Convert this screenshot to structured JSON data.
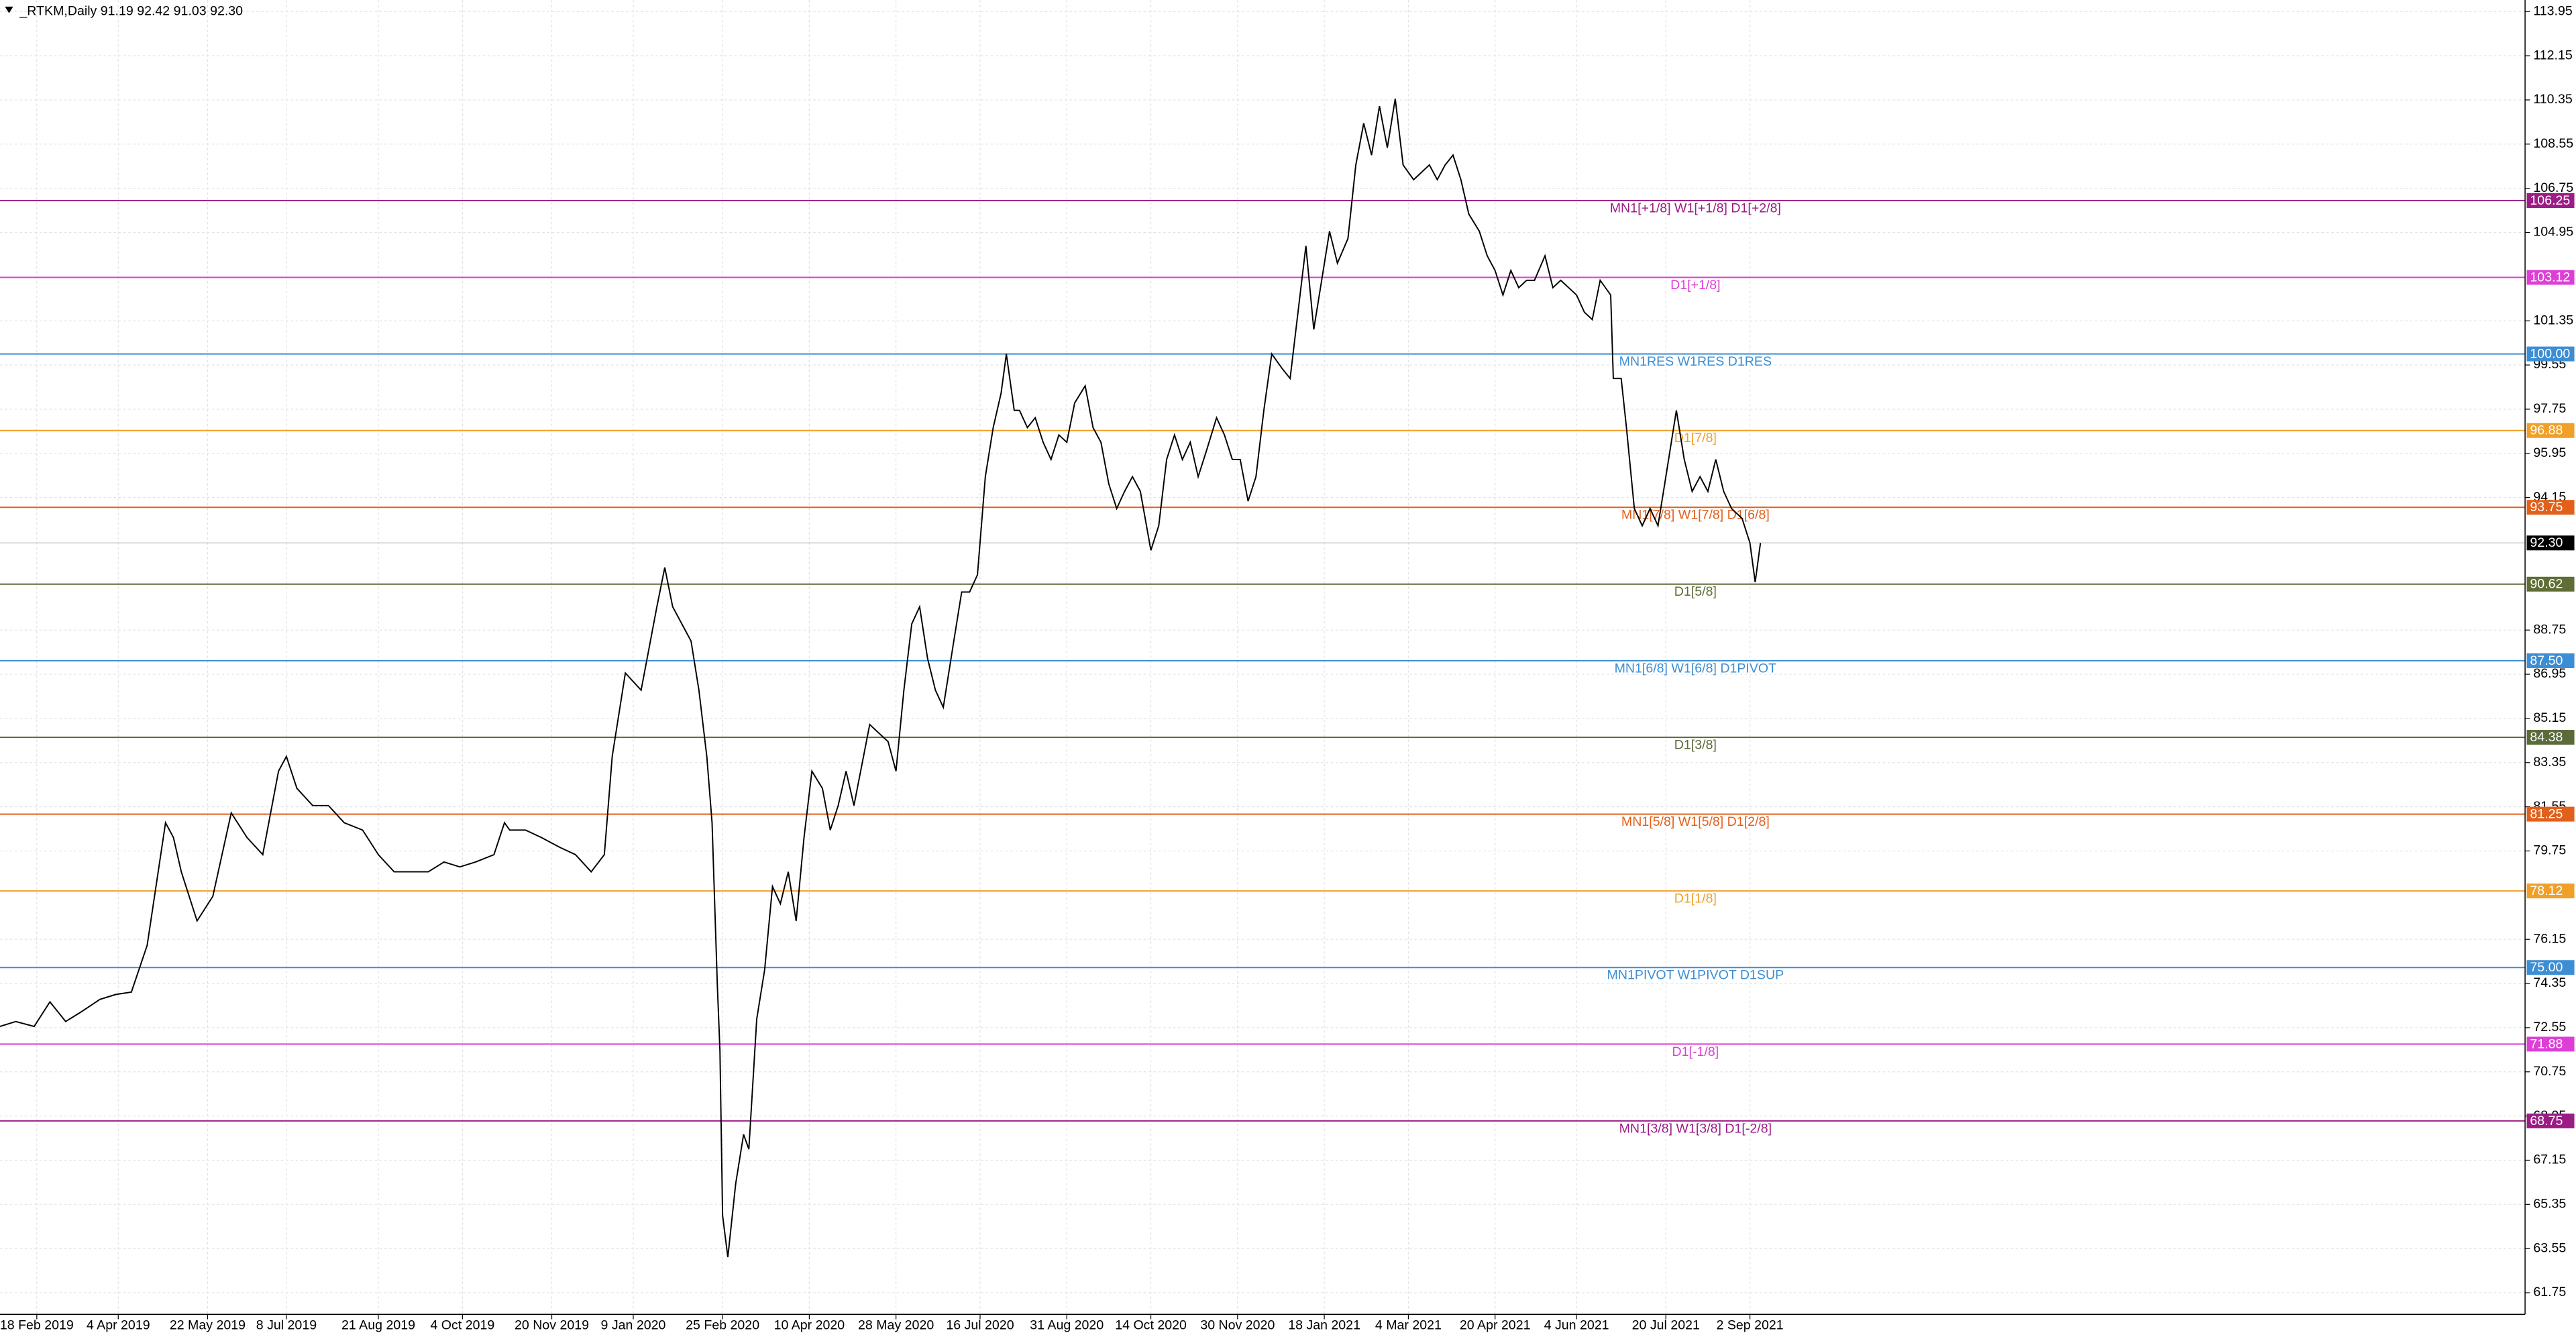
{
  "chart_data": {
    "type": "line",
    "title": "_RTKM,Daily  91.19 92.42 91.03 92.30",
    "color": "#000000",
    "grid": true,
    "xlim": [
      0,
      961
    ],
    "ylim": [
      60.87,
      114.42
    ],
    "xticks": [
      {
        "value": 14,
        "label": "18 Feb 2019"
      },
      {
        "value": 45,
        "label": "4 Apr 2019"
      },
      {
        "value": 79,
        "label": "22 May 2019"
      },
      {
        "value": 109,
        "label": "8 Jul 2019"
      },
      {
        "value": 144,
        "label": "21 Aug 2019"
      },
      {
        "value": 176,
        "label": "4 Oct 2019"
      },
      {
        "value": 210,
        "label": "20 Nov 2019"
      },
      {
        "value": 241,
        "label": "9 Jan 2020"
      },
      {
        "value": 275,
        "label": "25 Feb 2020"
      },
      {
        "value": 308,
        "label": "10 Apr 2020"
      },
      {
        "value": 341,
        "label": "28 May 2020"
      },
      {
        "value": 373,
        "label": "16 Jul 2020"
      },
      {
        "value": 406,
        "label": "31 Aug 2020"
      },
      {
        "value": 438,
        "label": "14 Oct 2020"
      },
      {
        "value": 471,
        "label": "30 Nov 2020"
      },
      {
        "value": 504,
        "label": "18 Jan 2021"
      },
      {
        "value": 536,
        "label": "4 Mar 2021"
      },
      {
        "value": 569,
        "label": "20 Apr 2021"
      },
      {
        "value": 600,
        "label": "4 Jun 2021"
      },
      {
        "value": 634,
        "label": "20 Jul 2021"
      },
      {
        "value": 666,
        "label": "2 Sep 2021"
      }
    ],
    "yticks": [
      113.95,
      112.15,
      110.35,
      108.55,
      106.75,
      104.95,
      101.35,
      99.55,
      97.75,
      95.95,
      94.15,
      88.75,
      86.95,
      85.15,
      83.35,
      81.55,
      79.75,
      76.15,
      74.35,
      72.55,
      70.75,
      68.95,
      67.15,
      65.35,
      63.55,
      61.75
    ],
    "x": [
      0,
      6,
      13,
      19,
      25,
      31,
      38,
      44,
      50,
      56,
      63,
      66,
      69,
      75,
      81,
      88,
      94,
      100,
      106,
      109,
      113,
      119,
      125,
      131,
      138,
      144,
      150,
      156,
      163,
      169,
      175,
      181,
      188,
      192,
      194,
      200,
      206,
      213,
      219,
      225,
      230,
      233,
      238,
      244,
      250,
      253,
      256,
      263,
      266,
      269,
      271,
      273,
      274,
      275,
      277,
      280,
      283,
      285,
      288,
      291,
      294,
      297,
      300,
      303,
      306,
      309,
      313,
      316,
      319,
      322,
      325,
      331,
      338,
      341,
      344,
      347,
      350,
      353,
      356,
      359,
      363,
      366,
      369,
      372,
      375,
      378,
      381,
      383,
      386,
      388,
      391,
      394,
      397,
      400,
      403,
      406,
      409,
      413,
      416,
      419,
      422,
      425,
      428,
      431,
      434,
      438,
      441,
      444,
      447,
      450,
      453,
      456,
      459,
      463,
      466,
      469,
      472,
      475,
      478,
      481,
      484,
      488,
      491,
      494,
      497,
      500,
      503,
      506,
      509,
      513,
      516,
      519,
      522,
      525,
      528,
      531,
      534,
      538,
      541,
      544,
      547,
      550,
      553,
      556,
      559,
      563,
      566,
      569,
      572,
      575,
      578,
      581,
      584,
      588,
      591,
      594,
      597,
      600,
      603,
      606,
      609,
      613,
      614,
      617,
      619,
      622,
      625,
      628,
      631,
      634,
      638,
      641,
      644,
      647,
      650,
      653,
      656,
      659,
      663,
      666,
      668,
      670
    ],
    "values": [
      72.6,
      72.8,
      72.6,
      73.6,
      72.8,
      73.2,
      73.7,
      73.9,
      74.0,
      75.9,
      80.9,
      80.3,
      78.9,
      76.9,
      77.9,
      81.3,
      80.3,
      79.6,
      83.0,
      83.6,
      82.3,
      81.6,
      81.6,
      80.9,
      80.6,
      79.6,
      78.9,
      78.9,
      78.9,
      79.3,
      79.1,
      79.3,
      79.6,
      80.9,
      80.6,
      80.6,
      80.3,
      79.9,
      79.6,
      78.9,
      79.6,
      83.6,
      87.0,
      86.3,
      89.7,
      91.3,
      89.7,
      88.3,
      86.3,
      83.6,
      80.9,
      74.3,
      71.6,
      64.9,
      63.2,
      66.2,
      68.2,
      67.6,
      72.9,
      74.9,
      78.3,
      77.6,
      78.9,
      76.9,
      80.3,
      83.0,
      82.3,
      80.6,
      81.6,
      83.0,
      81.6,
      84.9,
      84.2,
      83.0,
      86.3,
      89.0,
      89.7,
      87.6,
      86.3,
      85.6,
      88.3,
      90.3,
      90.3,
      91.0,
      95.0,
      97.0,
      98.4,
      100.0,
      97.7,
      97.7,
      97.0,
      97.4,
      96.4,
      95.7,
      96.7,
      96.4,
      98.0,
      98.7,
      97.0,
      96.4,
      94.7,
      93.7,
      94.4,
      95.0,
      94.4,
      92.0,
      93.0,
      95.7,
      96.7,
      95.7,
      96.4,
      95.0,
      96.0,
      97.4,
      96.7,
      95.7,
      95.7,
      94.0,
      95.0,
      97.7,
      100.0,
      99.4,
      99.0,
      101.7,
      104.4,
      101.0,
      103.0,
      105.0,
      103.7,
      104.7,
      107.7,
      109.4,
      108.1,
      110.1,
      108.4,
      110.4,
      107.7,
      107.1,
      107.4,
      107.7,
      107.1,
      107.7,
      108.1,
      107.1,
      105.7,
      105.0,
      104.0,
      103.4,
      102.4,
      103.4,
      102.7,
      103.0,
      103.0,
      104.0,
      102.7,
      103.0,
      102.7,
      102.4,
      101.7,
      101.4,
      103.0,
      102.4,
      99.0,
      99.0,
      97.0,
      93.7,
      93.0,
      93.7,
      93.0,
      95.0,
      97.7,
      95.7,
      94.4,
      95.0,
      94.4,
      95.7,
      94.4,
      93.7,
      93.3,
      92.3,
      90.7,
      92.3
    ],
    "last": {
      "value": 92.3,
      "label": "92.30"
    },
    "levels": [
      {
        "value": 106.25,
        "label": "MN1[+1/8] W1[+1/8] D1[+2/8]",
        "color": "#9c1c86"
      },
      {
        "value": 103.12,
        "price_label": "103.12",
        "label": "D1[+1/8]",
        "color": "#dd3fd6"
      },
      {
        "value": 100,
        "price_label": "100.00",
        "label": "MN1RES W1RES D1RES",
        "color": "#3b8ed4"
      },
      {
        "value": 96.88,
        "price_label": "96.88",
        "label": "D1[7/8]",
        "color": "#f0a028"
      },
      {
        "value": 93.75,
        "price_label": "93.75",
        "label": "MN1[7/8] W1[7/8] D1[6/8]",
        "color": "#e2601a"
      },
      {
        "value": 90.62,
        "price_label": "90.62",
        "label": "D1[5/8]",
        "color": "#5f6e36"
      },
      {
        "value": 87.5,
        "price_label": "87.50",
        "label": "MN1[6/8] W1[6/8] D1PIVOT",
        "color": "#3b8ed4"
      },
      {
        "value": 84.38,
        "price_label": "84.38",
        "label": "D1[3/8]",
        "color": "#5a6a38"
      },
      {
        "value": 81.25,
        "price_label": "81.25",
        "label": "MN1[5/8] W1[5/8] D1[2/8]",
        "color": "#e2601a"
      },
      {
        "value": 78.12,
        "price_label": "78.12",
        "label": "D1[1/8]",
        "color": "#f0a028"
      },
      {
        "value": 75,
        "price_label": "75.00",
        "label": "MN1PIVOT W1PIVOT D1SUP",
        "color": "#3b8ed4"
      },
      {
        "value": 71.88,
        "price_label": "71.88",
        "label": "D1[-1/8]",
        "color": "#dd3fd6"
      },
      {
        "value": 68.75,
        "price_label": "68.75",
        "label": "MN1[3/8] W1[3/8] D1[-2/8]",
        "color": "#9c1c86"
      }
    ]
  }
}
